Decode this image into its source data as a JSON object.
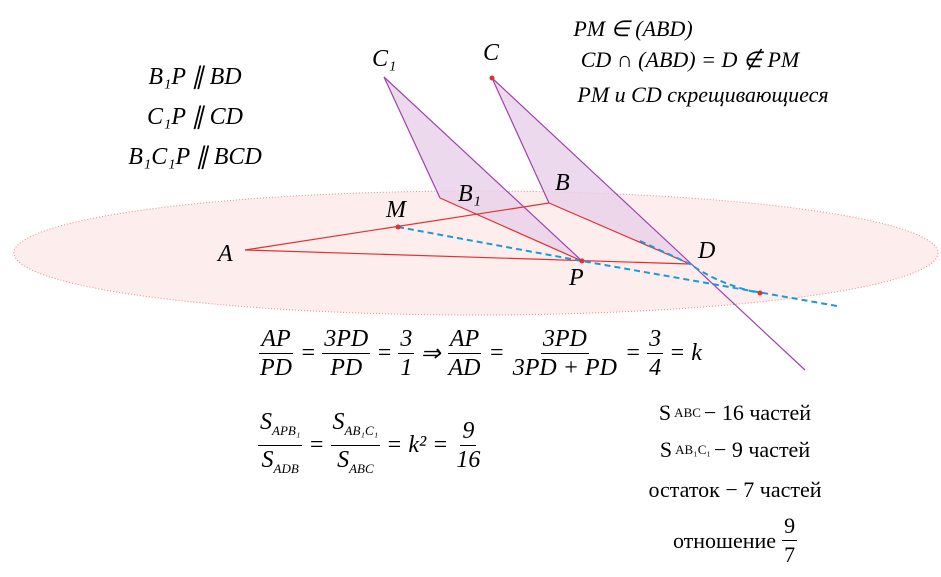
{
  "points": [
    "C₁",
    "C",
    "B₁",
    "B",
    "M",
    "A",
    "P",
    "D"
  ],
  "notes_left": [
    "B₁P ∥ BD",
    "C₁P ∥ CD",
    "B₁C₁P ∥ BCD"
  ],
  "notes_right": [
    "PM ∈ (ABD)",
    "CD ∩ (ABD) = D ∉ PM",
    "PM и CD скрещивающиеся"
  ],
  "formula1": [
    {
      "num": "AP",
      "den": "PD"
    },
    {
      "op": "="
    },
    {
      "num": "3PD",
      "den": "PD"
    },
    {
      "op": "="
    },
    {
      "num": "3",
      "den": "1"
    },
    {
      "op": "⇒"
    },
    {
      "num": "AP",
      "den": "AD"
    },
    {
      "op": "="
    },
    {
      "num": "3PD",
      "den": "3PD + PD"
    },
    {
      "op": "="
    },
    {
      "num": "3",
      "den": "4"
    },
    {
      "op": "= k"
    }
  ],
  "formula2": [
    {
      "num": "S",
      "num_sub": "APB₁",
      "den": "S",
      "den_sub": "ADB"
    },
    {
      "op": "="
    },
    {
      "num": "S",
      "num_sub": "AB₁C₁",
      "den": "S",
      "den_sub": "ABC"
    },
    {
      "op": "= k² ="
    },
    {
      "num": "9",
      "den": "16"
    }
  ],
  "parts_list": [
    [
      {
        "op": "S"
      },
      {
        "sub": "ABC"
      },
      {
        "op": "− 16 частей"
      }
    ],
    [
      {
        "op": "S"
      },
      {
        "sub": "AB₁C₁"
      },
      {
        "op": "− 9 частей"
      }
    ],
    [
      {
        "op": "остаток − 7 частей"
      }
    ],
    [
      {
        "op": "отношение"
      },
      {
        "num": "9",
        "den": "7"
      }
    ]
  ]
}
